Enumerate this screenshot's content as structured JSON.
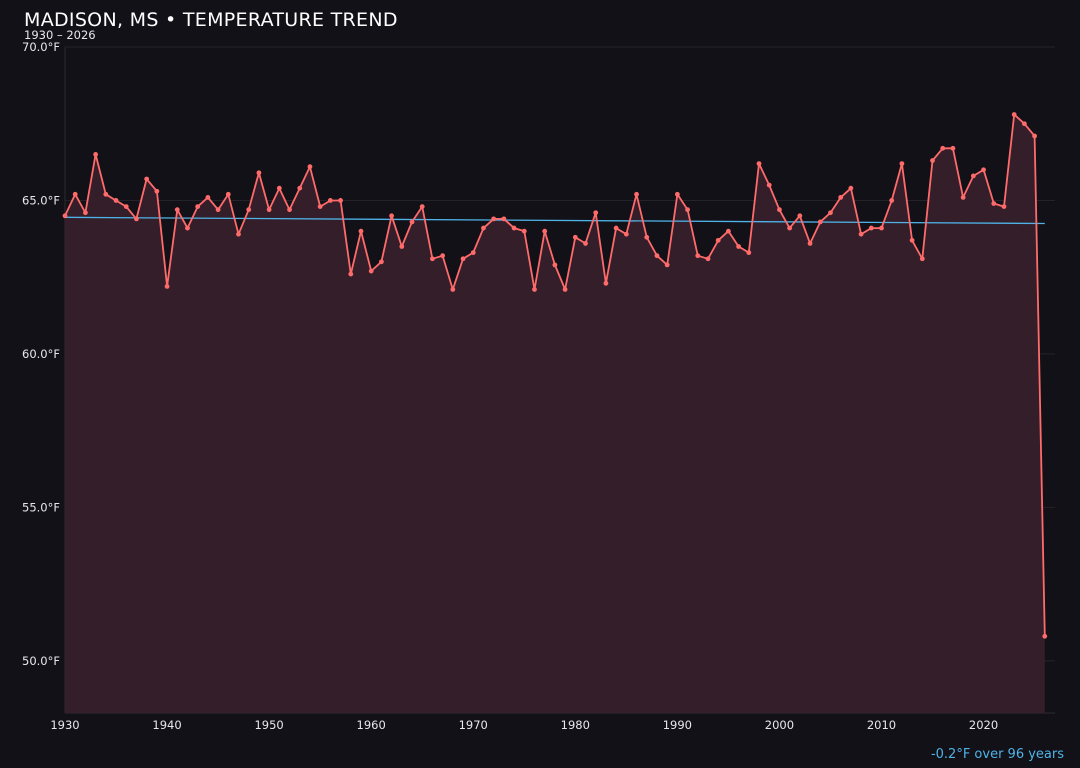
{
  "chart_data": {
    "type": "line",
    "title": "MADISON, MS • TEMPERATURE TREND",
    "subtitle": "1930 – 2026",
    "xlabel": "",
    "ylabel": "",
    "xlim": [
      1930,
      2027
    ],
    "ylim": [
      48.3,
      70
    ],
    "grid": true,
    "x_ticks": [
      "1930",
      "1940",
      "1950",
      "1960",
      "1970",
      "1980",
      "1990",
      "2000",
      "2010",
      "2020"
    ],
    "y_ticks": [
      "50.0°F",
      "55.0°F",
      "60.0°F",
      "65.0°F",
      "70.0°F"
    ],
    "colors": {
      "series": "#ff6b6b",
      "fill": "#36202a",
      "trend": "#4fb3e8",
      "background": "#121117"
    },
    "x": [
      1930,
      1931,
      1932,
      1933,
      1934,
      1935,
      1936,
      1937,
      1938,
      1939,
      1940,
      1941,
      1942,
      1943,
      1944,
      1945,
      1946,
      1947,
      1948,
      1949,
      1950,
      1951,
      1952,
      1953,
      1954,
      1955,
      1956,
      1957,
      1958,
      1959,
      1960,
      1961,
      1962,
      1963,
      1964,
      1965,
      1966,
      1967,
      1968,
      1969,
      1970,
      1971,
      1972,
      1973,
      1974,
      1975,
      1976,
      1977,
      1978,
      1979,
      1980,
      1981,
      1982,
      1983,
      1984,
      1985,
      1986,
      1987,
      1988,
      1989,
      1990,
      1991,
      1992,
      1993,
      1994,
      1995,
      1996,
      1997,
      1998,
      1999,
      2000,
      2001,
      2002,
      2003,
      2004,
      2005,
      2006,
      2007,
      2008,
      2009,
      2010,
      2011,
      2012,
      2013,
      2014,
      2015,
      2016,
      2017,
      2018,
      2019,
      2020,
      2021,
      2022,
      2023,
      2024,
      2025,
      2026
    ],
    "series": [
      {
        "values": [
          64.5,
          65.2,
          64.6,
          66.5,
          65.2,
          65.0,
          64.8,
          64.4,
          65.7,
          65.3,
          62.2,
          64.7,
          64.1,
          64.8,
          65.1,
          64.7,
          65.2,
          63.9,
          64.7,
          65.9,
          64.7,
          65.4,
          64.7,
          65.4,
          66.1,
          64.8,
          65.0,
          65.0,
          62.6,
          64.0,
          62.7,
          63.0,
          64.5,
          63.5,
          64.3,
          64.8,
          63.1,
          63.2,
          62.1,
          63.1,
          63.3,
          64.1,
          64.4,
          64.4,
          64.1,
          64.0,
          62.1,
          64.0,
          62.9,
          62.1,
          63.8,
          63.6,
          64.6,
          62.3,
          64.1,
          63.9,
          65.2,
          63.8,
          63.2,
          62.9,
          65.2,
          64.7,
          63.2,
          63.1,
          63.7,
          64.0,
          63.5,
          63.3,
          66.2,
          65.5,
          64.7,
          64.1,
          64.5,
          63.6,
          64.3,
          64.6,
          65.1,
          65.4,
          63.9,
          64.1,
          64.1,
          65.0,
          66.2,
          63.7,
          63.1,
          66.3,
          66.7,
          66.7,
          65.1,
          65.8,
          66.0,
          64.9,
          64.8,
          67.8,
          67.5,
          67.1,
          50.8
        ]
      }
    ],
    "trend": {
      "start": [
        1930,
        64.45
      ],
      "end": [
        2026,
        64.25
      ],
      "label": "-0.2°F over 96 years"
    }
  }
}
